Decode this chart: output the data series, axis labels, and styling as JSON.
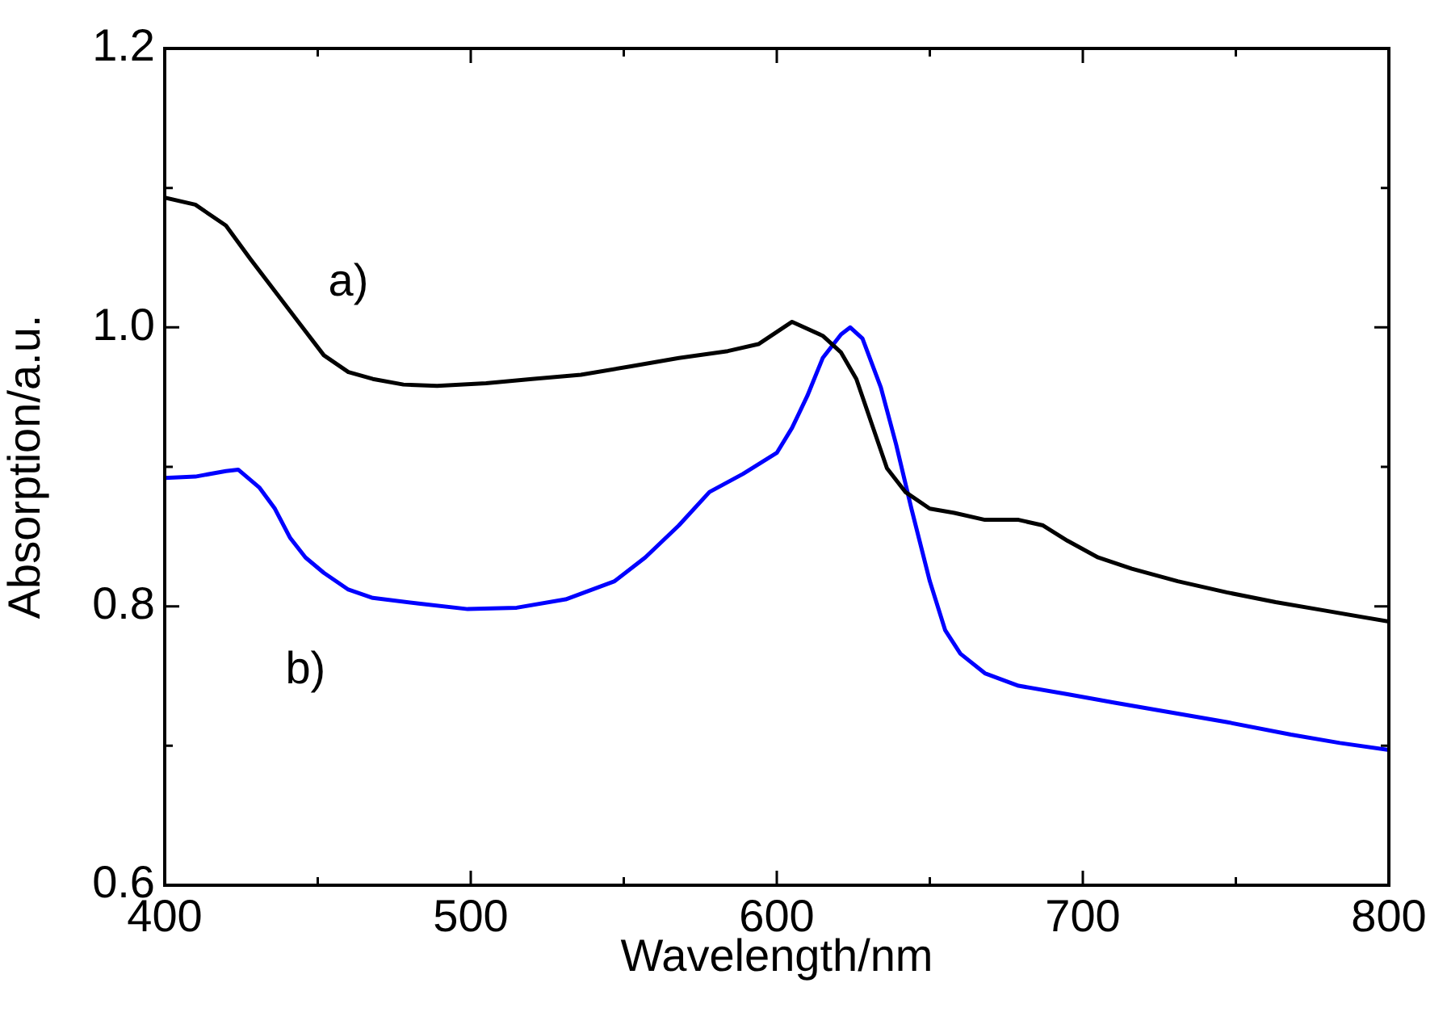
{
  "chart_data": {
    "type": "line",
    "xlabel": "Wavelength/nm",
    "ylabel": "Absorption/a.u.",
    "xlim": [
      400,
      800
    ],
    "ylim": [
      0.6,
      1.2
    ],
    "xticks": [
      400,
      {
        "value": 450,
        "label": null
      },
      500,
      {
        "value": 550,
        "label": null
      },
      600,
      {
        "value": 650,
        "label": null
      },
      700,
      {
        "value": 750,
        "label": null
      },
      800
    ],
    "yticks": [
      {
        "value": 0.6,
        "label": "0.6"
      },
      {
        "value": 0.7,
        "label": null
      },
      {
        "value": 0.8,
        "label": "0.8"
      },
      {
        "value": 0.9,
        "label": null
      },
      {
        "value": 1.0,
        "label": "1.0"
      },
      {
        "value": 1.1,
        "label": null
      },
      {
        "value": 1.2,
        "label": "1.2"
      }
    ],
    "grid": false,
    "legend": false,
    "marker": "none",
    "line_style": "solid",
    "series": [
      {
        "name": "a)",
        "color": "#000000",
        "x": [
          400,
          410,
          420,
          428,
          436,
          444,
          452,
          460,
          468,
          478,
          489,
          505,
          520,
          536,
          552,
          568,
          584,
          594,
          605,
          615,
          621,
          626,
          631,
          636,
          642,
          650,
          658,
          668,
          679,
          687,
          695,
          705,
          716,
          731,
          747,
          763,
          779,
          800
        ],
        "values": [
          1.093,
          1.088,
          1.073,
          1.049,
          1.026,
          1.003,
          0.98,
          0.968,
          0.963,
          0.959,
          0.958,
          0.96,
          0.963,
          0.966,
          0.972,
          0.978,
          0.983,
          0.988,
          1.004,
          0.994,
          0.982,
          0.963,
          0.931,
          0.899,
          0.882,
          0.87,
          0.867,
          0.862,
          0.862,
          0.858,
          0.847,
          0.835,
          0.827,
          0.818,
          0.81,
          0.803,
          0.797,
          0.789
        ]
      },
      {
        "name": "b)",
        "color": "#0000ff",
        "x": [
          400,
          410,
          420,
          424,
          431,
          436,
          441,
          446,
          452,
          460,
          468,
          483,
          499,
          515,
          531,
          547,
          557,
          568,
          578,
          589,
          600,
          605,
          610,
          615,
          621,
          624,
          628,
          634,
          639,
          644,
          650,
          655,
          660,
          668,
          679,
          695,
          710,
          726,
          747,
          768,
          784,
          800
        ],
        "values": [
          0.892,
          0.893,
          0.897,
          0.898,
          0.885,
          0.87,
          0.849,
          0.835,
          0.824,
          0.812,
          0.806,
          0.802,
          0.798,
          0.799,
          0.805,
          0.818,
          0.835,
          0.858,
          0.882,
          0.895,
          0.91,
          0.928,
          0.951,
          0.978,
          0.995,
          1.0,
          0.992,
          0.957,
          0.916,
          0.87,
          0.818,
          0.783,
          0.766,
          0.752,
          0.743,
          0.737,
          0.731,
          0.725,
          0.717,
          0.708,
          0.702,
          0.697
        ]
      }
    ]
  }
}
